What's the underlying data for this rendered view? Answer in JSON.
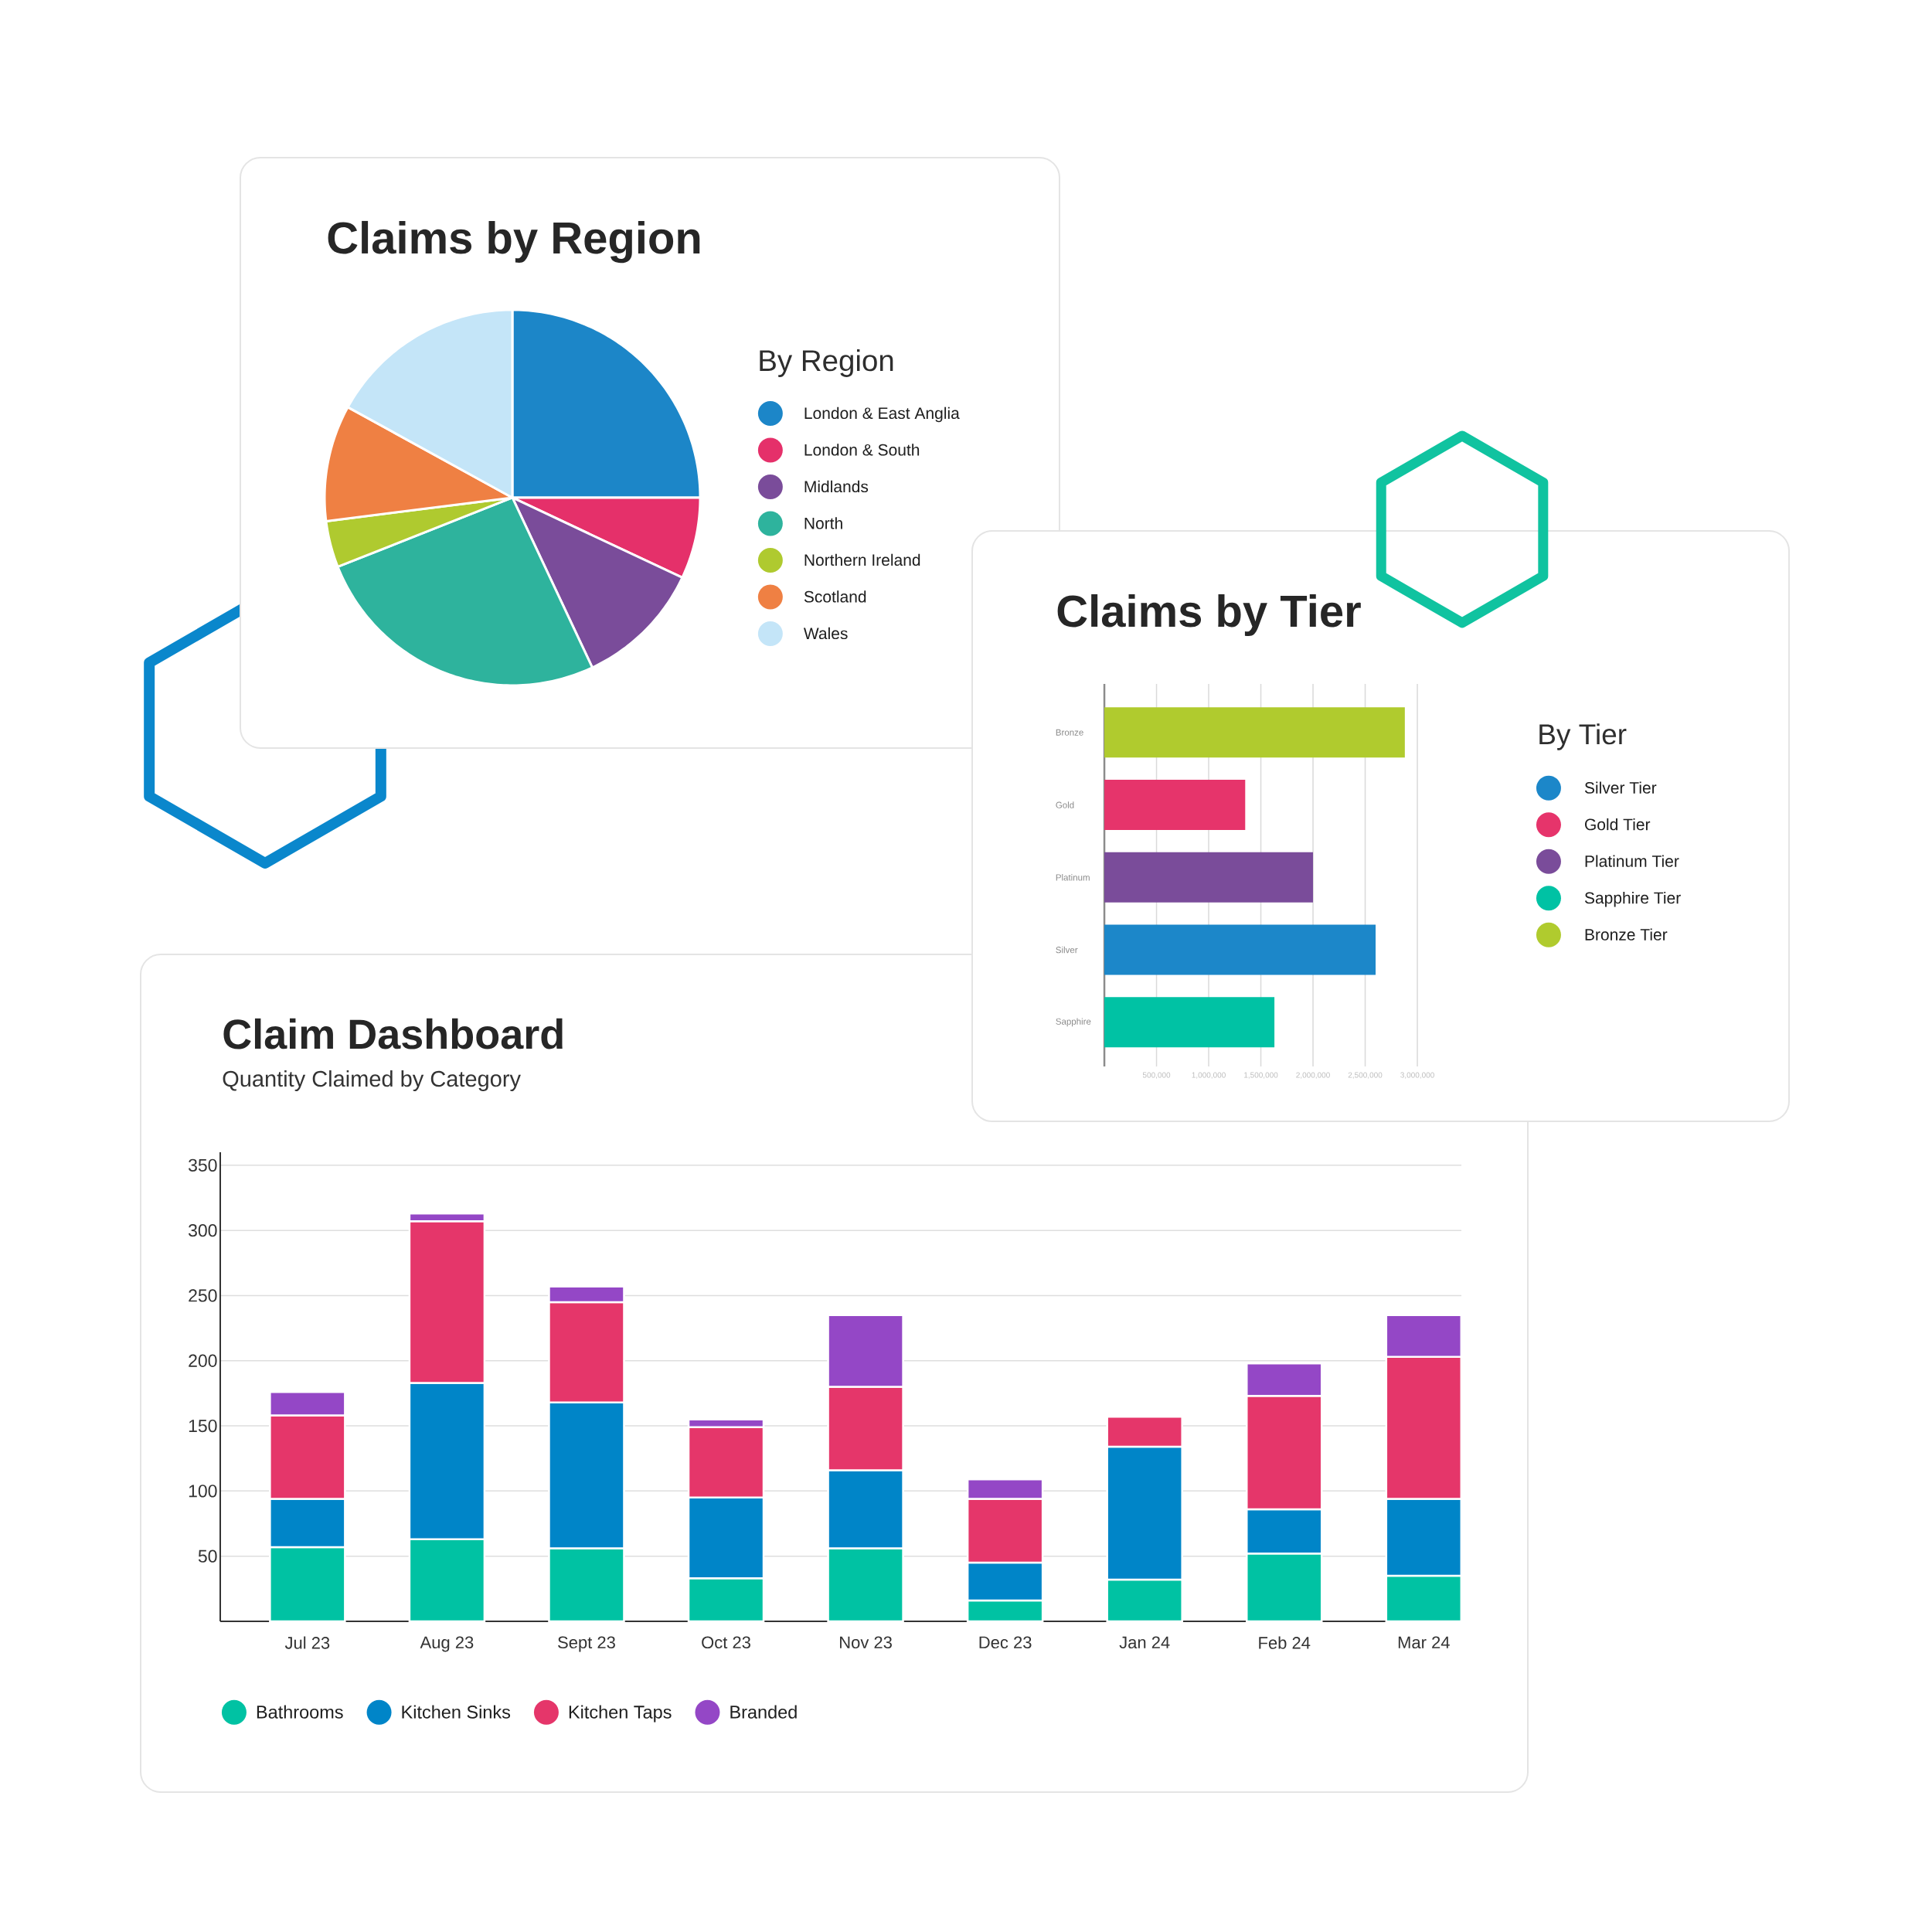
{
  "chart_data": [
    {
      "type": "pie",
      "title": "Claims by Region",
      "legend_title": "By Region",
      "categories": [
        "London & East Anglia",
        "London & South",
        "Midlands",
        "North",
        "Northern Ireland",
        "Scotland",
        "Wales"
      ],
      "values": [
        25,
        7,
        11,
        26,
        4,
        10,
        17
      ],
      "colors": [
        "#1c86c8",
        "#e5306a",
        "#7a4c9a",
        "#2eb39d",
        "#afca2f",
        "#ef8043",
        "#c4e5f8"
      ],
      "legend": "right"
    },
    {
      "type": "bar",
      "orientation": "horizontal",
      "title": "Claims by Tier",
      "legend_title": "By Tier",
      "categories": [
        "Bronze",
        "Gold",
        "Platinum",
        "Silver",
        "Sapphire"
      ],
      "series": [
        {
          "name": "Silver Tier",
          "color": "#1c87c9",
          "values": [
            null,
            null,
            null,
            2600000,
            null
          ]
        },
        {
          "name": "Gold Tier",
          "color": "#e6346b",
          "values": [
            null,
            1350000,
            null,
            null,
            null
          ]
        },
        {
          "name": "Platinum Tier",
          "color": "#7a4c9a",
          "values": [
            null,
            null,
            2000000,
            null,
            null
          ]
        },
        {
          "name": "Sapphire Tier",
          "color": "#00c2a4",
          "values": [
            null,
            null,
            null,
            null,
            1630000
          ]
        },
        {
          "name": "Bronze Tier",
          "color": "#b0cb2e",
          "values": [
            2880000,
            null,
            null,
            null,
            null
          ]
        }
      ],
      "xlim": [
        0,
        3000000
      ],
      "xticks": [
        {
          "value": 500000,
          "label": "500,000"
        },
        {
          "value": 1000000,
          "label": "1,000,000"
        },
        {
          "value": 1500000,
          "label": "1,500,000"
        },
        {
          "value": 2000000,
          "label": "2,000,000"
        },
        {
          "value": 2500000,
          "label": "2,500,000"
        },
        {
          "value": 3000000,
          "label": "3,000,000"
        }
      ],
      "grid": "x",
      "legend": "right"
    },
    {
      "type": "bar",
      "stacked": true,
      "title": "Claim Dashboard",
      "subtitle": "Quantity Claimed by Category",
      "categories": [
        "Jul 23",
        "Aug 23",
        "Sept 23",
        "Oct 23",
        "Nov 23",
        "Dec 23",
        "Jan 24",
        "Feb 24",
        "Mar 24"
      ],
      "series": [
        {
          "name": "Bathrooms",
          "color": "#00c2a3",
          "values": [
            57,
            63,
            56,
            33,
            56,
            16,
            32,
            52,
            35
          ]
        },
        {
          "name": "Kitchen Sinks",
          "color": "#0085c8",
          "values": [
            37,
            120,
            112,
            62,
            60,
            29,
            102,
            34,
            59
          ]
        },
        {
          "name": "Kitchen Taps",
          "color": "#e5366a",
          "values": [
            64,
            124,
            77,
            54,
            64,
            49,
            23,
            87,
            109
          ]
        },
        {
          "name": "Branded",
          "color": "#9447c6",
          "values": [
            18,
            6,
            12,
            6,
            55,
            15,
            null,
            25,
            32
          ]
        }
      ],
      "ylim": [
        0,
        360
      ],
      "yticks": [
        50,
        100,
        150,
        200,
        250,
        300,
        350
      ],
      "grid": "y",
      "legend": "bottom left"
    }
  ]
}
